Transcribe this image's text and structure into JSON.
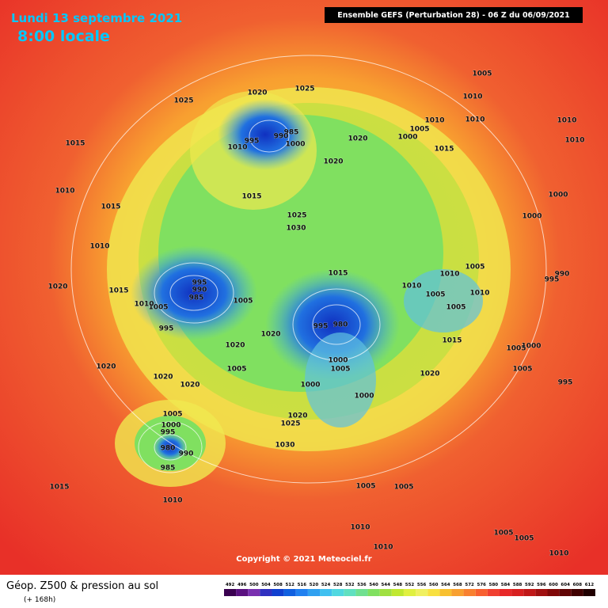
{
  "header": {
    "date": "Lundi 13 septembre 2021",
    "time": "8:00 locale",
    "model": "Ensemble GEFS  (Perturbation 28)  -  06 Z du 06/09/2021"
  },
  "copyright": "Copyright © 2021 Meteociel.fr",
  "legend": {
    "title": "Géop. Z500 & pression au sol",
    "lead": "(+ 168h)",
    "ticks": [
      492,
      496,
      500,
      504,
      508,
      512,
      516,
      520,
      524,
      528,
      532,
      536,
      540,
      544,
      548,
      552,
      556,
      560,
      564,
      568,
      572,
      576,
      580,
      584,
      588,
      592,
      596,
      600,
      604,
      608,
      612
    ],
    "colors": [
      "#3a0050",
      "#5a1080",
      "#7a30b0",
      "#3030c0",
      "#1040d0",
      "#1060e0",
      "#2080f0",
      "#30a0f0",
      "#40c0f0",
      "#50d8e0",
      "#60e0c0",
      "#70e090",
      "#80e060",
      "#a0e040",
      "#c0e830",
      "#e0f040",
      "#f0f060",
      "#f8e040",
      "#f8c030",
      "#f8a030",
      "#f88030",
      "#f86030",
      "#f04030",
      "#e82828",
      "#d82020",
      "#c01818",
      "#a01010",
      "#800808",
      "#600404",
      "#400000",
      "#200000"
    ]
  },
  "isobars": {
    "labels": [
      "1025",
      "1015",
      "1010",
      "1015",
      "1010",
      "1020",
      "1015",
      "1020",
      "1025",
      "985",
      "990",
      "995",
      "1010",
      "1000",
      "1020",
      "1020",
      "1000",
      "1005",
      "1010",
      "1010",
      "1010",
      "1005",
      "1015",
      "1010",
      "1010",
      "1000",
      "1000",
      "1015",
      "1025",
      "1030",
      "1015",
      "995",
      "990",
      "985",
      "1005",
      "1010",
      "995",
      "1005",
      "1020",
      "1020",
      "1010",
      "1005",
      "1005",
      "1010",
      "1005",
      "1010",
      "1015",
      "980",
      "995",
      "1000",
      "1005",
      "1000",
      "1000",
      "1005",
      "1020",
      "1020",
      "1020",
      "1020",
      "1005",
      "1000",
      "1005",
      "995",
      "995",
      "990",
      "1005",
      "1000",
      "995",
      "980",
      "990",
      "985",
      "1020",
      "1025",
      "1030",
      "1015",
      "1010",
      "1005",
      "1005",
      "1010",
      "1010",
      "1005",
      "1005",
      "1010"
    ]
  }
}
